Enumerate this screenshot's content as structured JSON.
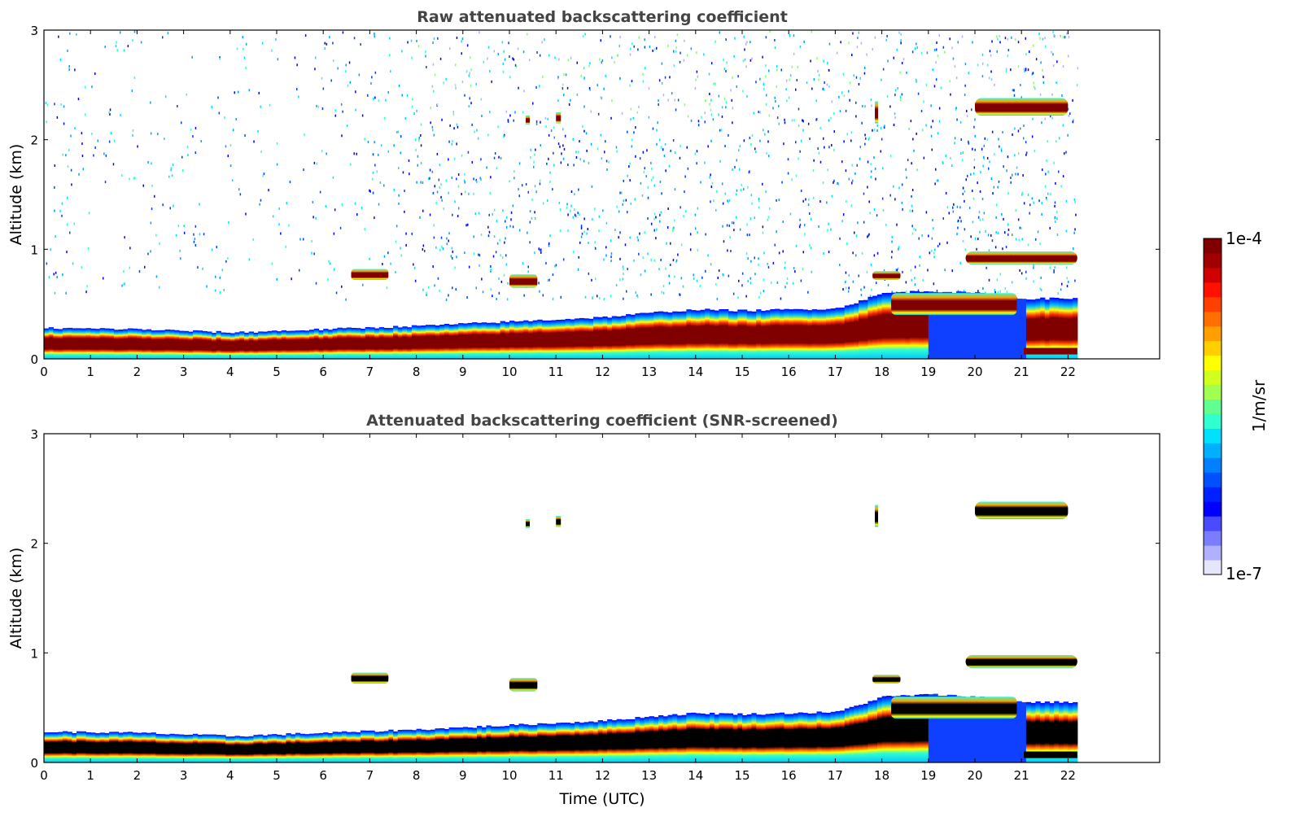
{
  "chart_data": [
    {
      "type": "heatmap",
      "title": "Raw attenuated backscattering coefficient",
      "xlabel": "",
      "ylabel": "Altitude (km)",
      "xlim": [
        0,
        24
      ],
      "ylim": [
        0,
        3
      ],
      "xticks": [
        "0",
        "1",
        "2",
        "3",
        "4",
        "5",
        "6",
        "7",
        "8",
        "9",
        "10",
        "11",
        "12",
        "13",
        "14",
        "15",
        "16",
        "17",
        "18",
        "19",
        "20",
        "21",
        "22"
      ],
      "yticks": [
        "0",
        "1",
        "2",
        "3"
      ],
      "data_extent_hours": 22.2,
      "layers": [
        {
          "name": "boundary-layer-aerosol",
          "time": [
            0,
            2,
            4,
            6,
            8,
            10,
            12,
            13,
            14,
            15,
            16,
            17,
            18,
            19,
            20,
            21
          ],
          "top_km": [
            0.28,
            0.27,
            0.24,
            0.27,
            0.3,
            0.34,
            0.38,
            0.42,
            0.45,
            0.44,
            0.45,
            0.46,
            0.6,
            0.62,
            0.6,
            0.55
          ],
          "core_km": [
            0.18,
            0.17,
            0.15,
            0.18,
            0.22,
            0.26,
            0.3,
            0.33,
            0.35,
            0.34,
            0.35,
            0.32,
            0.52,
            0.55,
            0.52,
            0.5
          ]
        },
        {
          "name": "cloud-low",
          "time_range": [
            19.8,
            22.2
          ],
          "altitude_km": 0.92
        },
        {
          "name": "cloud-high",
          "time_range": [
            20.0,
            22.0
          ],
          "altitude_km": 2.3
        },
        {
          "name": "aerosol-patch",
          "time_range": [
            6.6,
            7.4
          ],
          "altitude_km": 0.78
        },
        {
          "name": "aerosol-patch",
          "time_range": [
            10.0,
            10.6
          ],
          "altitude_km": 0.72
        }
      ]
    },
    {
      "type": "heatmap",
      "title": "Attenuated backscattering coefficient (SNR-screened)",
      "xlabel": "Time (UTC)",
      "ylabel": "Altitude (km)",
      "xlim": [
        0,
        24
      ],
      "ylim": [
        0,
        3
      ],
      "xticks": [
        "0",
        "1",
        "2",
        "3",
        "4",
        "5",
        "6",
        "7",
        "8",
        "9",
        "10",
        "11",
        "12",
        "13",
        "14",
        "15",
        "16",
        "17",
        "18",
        "19",
        "20",
        "21",
        "22"
      ],
      "yticks": [
        "0",
        "1",
        "2",
        "3"
      ],
      "data_extent_hours": 22.2
    }
  ],
  "colorbar": {
    "label": "1/m/sr",
    "max_label": "1e-4",
    "min_label": "1e-7",
    "colormap": [
      "#e6e6fa",
      "#b0b0ff",
      "#7c7cff",
      "#4a4aff",
      "#0000ff",
      "#0020ff",
      "#0050ff",
      "#0080ff",
      "#00b0ff",
      "#00e0ff",
      "#30ffd0",
      "#60ff90",
      "#a0ff50",
      "#d0ff20",
      "#ffff00",
      "#ffd000",
      "#ffa000",
      "#ff7000",
      "#ff4000",
      "#ff1000",
      "#d00000",
      "#a00000",
      "#800000"
    ]
  }
}
